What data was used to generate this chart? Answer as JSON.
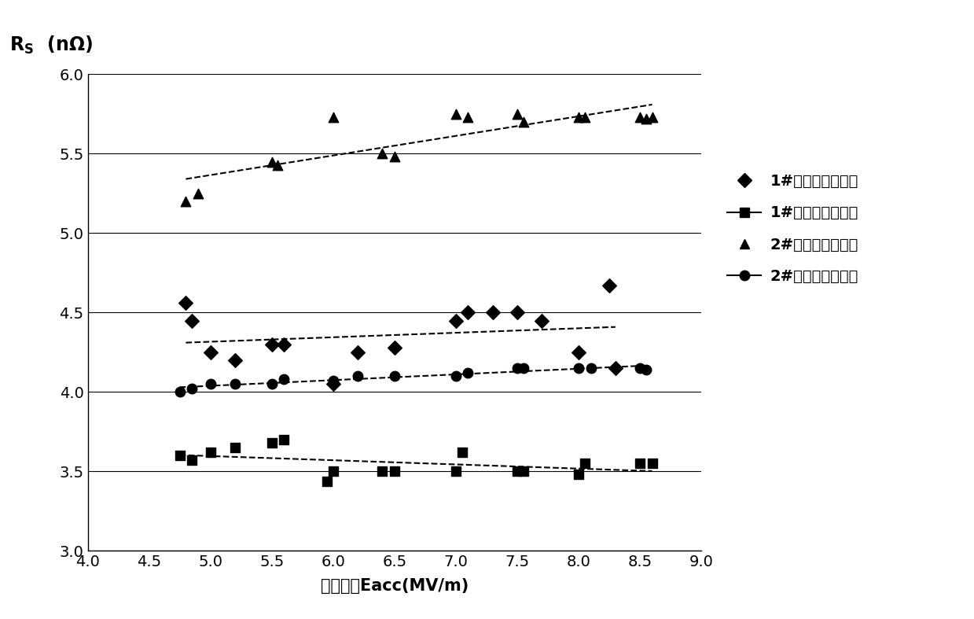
{
  "xlabel": "加速梯度Eacc(MV/m)",
  "ylabel_line1": "R",
  "ylabel_line2": "S",
  "ylabel_unit": "（nΩ）",
  "xlim": [
    4,
    9
  ],
  "ylim": [
    3.0,
    6.0
  ],
  "xticks": [
    4,
    4.5,
    5,
    5.5,
    6,
    6.5,
    7,
    7.5,
    8,
    8.5,
    9
  ],
  "yticks": [
    3.0,
    3.5,
    4.0,
    4.5,
    5.0,
    5.5,
    6.0
  ],
  "series1_x": [
    4.8,
    4.85,
    5.0,
    5.2,
    5.5,
    5.6,
    6.0,
    6.2,
    6.5,
    7.0,
    7.1,
    7.3,
    7.5,
    7.7,
    8.0,
    8.25,
    8.3
  ],
  "series1_y": [
    4.56,
    4.45,
    4.25,
    4.2,
    4.3,
    4.3,
    4.05,
    4.25,
    4.28,
    4.45,
    4.5,
    4.5,
    4.5,
    4.45,
    4.25,
    4.67,
    4.15
  ],
  "series2_x": [
    4.75,
    4.85,
    5.0,
    5.2,
    5.5,
    5.6,
    5.95,
    6.0,
    6.4,
    6.5,
    7.0,
    7.05,
    7.5,
    7.55,
    8.0,
    8.05,
    8.5,
    8.6
  ],
  "series2_y": [
    3.6,
    3.57,
    3.62,
    3.65,
    3.68,
    3.7,
    3.44,
    3.5,
    3.5,
    3.5,
    3.5,
    3.62,
    3.5,
    3.5,
    3.48,
    3.55,
    3.55,
    3.55
  ],
  "series3_x": [
    4.8,
    4.9,
    5.5,
    5.55,
    6.0,
    6.4,
    6.5,
    7.0,
    7.1,
    7.5,
    7.55,
    8.0,
    8.05,
    8.5,
    8.55,
    8.6
  ],
  "series3_y": [
    5.2,
    5.25,
    5.45,
    5.43,
    5.73,
    5.5,
    5.48,
    5.75,
    5.73,
    5.75,
    5.7,
    5.73,
    5.73,
    5.73,
    5.72,
    5.73
  ],
  "series4_x": [
    4.75,
    4.85,
    5.0,
    5.2,
    5.5,
    5.6,
    6.0,
    6.2,
    6.5,
    7.0,
    7.1,
    7.5,
    7.55,
    8.0,
    8.1,
    8.5,
    8.55
  ],
  "series4_y": [
    4.0,
    4.02,
    4.05,
    4.05,
    4.05,
    4.08,
    4.07,
    4.1,
    4.1,
    4.1,
    4.12,
    4.15,
    4.15,
    4.15,
    4.15,
    4.15,
    4.14
  ],
  "legend_labels": [
    "1#腔（氮掘杂前）",
    "1#腔（氮掘杂后）",
    "2#腔（氮掘杂前）",
    "2#腔（氮掘杂后）"
  ],
  "color": "#000000",
  "background_color": "#ffffff"
}
